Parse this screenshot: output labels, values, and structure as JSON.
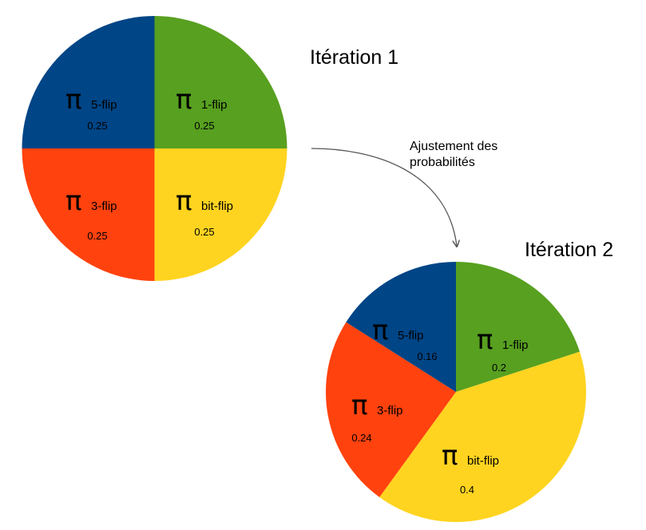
{
  "annotation": {
    "line1": "Ajustement des",
    "line2": "probabilités"
  },
  "colors": {
    "1-flip": "#58A020",
    "bit-flip": "#FFD420",
    "3-flip": "#FF420E",
    "5-flip": "#004586"
  },
  "chart_data": [
    {
      "type": "pie",
      "title": "Itération 1",
      "symbol": "π",
      "slices": [
        {
          "label": "1-flip",
          "value": 0.25,
          "value_label": "0.25"
        },
        {
          "label": "bit-flip",
          "value": 0.25,
          "value_label": "0.25"
        },
        {
          "label": "3-flip",
          "value": 0.25,
          "value_label": "0.25"
        },
        {
          "label": "5-flip",
          "value": 0.25,
          "value_label": "0.25"
        }
      ]
    },
    {
      "type": "pie",
      "title": "Itération 2",
      "symbol": "π",
      "slices": [
        {
          "label": "1-flip",
          "value": 0.2,
          "value_label": "0.2"
        },
        {
          "label": "bit-flip",
          "value": 0.4,
          "value_label": "0.4"
        },
        {
          "label": "3-flip",
          "value": 0.24,
          "value_label": "0.24"
        },
        {
          "label": "5-flip",
          "value": 0.16,
          "value_label": "0.16"
        }
      ]
    }
  ]
}
